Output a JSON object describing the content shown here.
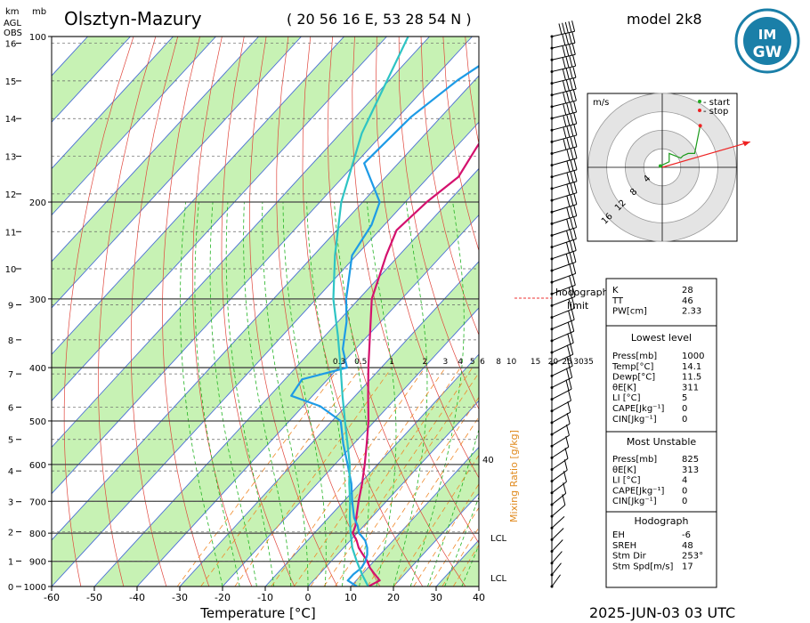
{
  "header": {
    "station": "Olsztyn-Mazury",
    "coords": "( 20 56 16  E, 53 28 54 N )",
    "model": "model 2k8",
    "datetime": "2025-JUN-03    03 UTC",
    "left_units": [
      "km",
      "mb"
    ],
    "left_sub": [
      "AGL",
      "OBS"
    ]
  },
  "logo": {
    "text_top": "IM",
    "text_bottom": "GW",
    "ring_color": "#1a7fa8"
  },
  "chart_data": {
    "type": "line",
    "title": "Olsztyn-Mazury",
    "xlabel": "Temperature [°C]",
    "ylabel": "",
    "xlim": [
      -60,
      40
    ],
    "x_ticks": [
      -60,
      -50,
      -40,
      -30,
      -20,
      -10,
      0,
      10,
      20,
      30,
      40
    ],
    "p_levels": [
      1000,
      900,
      800,
      700,
      600,
      500,
      400,
      300,
      200,
      100
    ],
    "p_labels": [
      "1000",
      "900",
      "800",
      "700",
      "600",
      "500",
      "400",
      "300",
      "200",
      "100"
    ],
    "km_ticks": [
      0,
      1,
      2,
      3,
      4,
      5,
      6,
      7,
      8,
      9,
      10,
      11,
      12,
      13,
      14,
      15,
      16
    ],
    "km_labels": [
      "0",
      "1",
      "2",
      "3",
      "4",
      "5",
      "6",
      "7",
      "8",
      "9",
      "10",
      "11",
      "12",
      "13",
      "14",
      "15",
      "16"
    ],
    "mixing_ratio_labels": [
      "0.3",
      "0.5",
      "1",
      "2",
      "3",
      "4",
      "5",
      "6",
      "8",
      "10",
      "15",
      "20",
      "25",
      "30",
      "35"
    ],
    "mixing_ratio_axis": "Mixing Ratio [g/kg]",
    "mixing_ratio_40": "40",
    "lcl_labels": [
      "LCL",
      "LCL"
    ],
    "series": [
      {
        "name": "temperature",
        "color": "#d4116e",
        "p": [
          1000,
          975,
          950,
          925,
          900,
          875,
          850,
          825,
          800,
          775,
          750,
          700,
          650,
          600,
          550,
          500,
          450,
          400,
          350,
          300,
          250,
          225,
          200,
          180,
          160,
          140,
          120,
          100
        ],
        "t": [
          14.1,
          15.5,
          13,
          10.5,
          8.5,
          6,
          3.5,
          1.5,
          -1,
          -2,
          -3.5,
          -6.5,
          -9.5,
          -13,
          -17,
          -21.5,
          -27,
          -33,
          -39.5,
          -47,
          -53,
          -56,
          -55,
          -53,
          -55,
          -57,
          -60,
          -62
        ]
      },
      {
        "name": "dewpoint",
        "color": "#1e9be6",
        "p": [
          1000,
          975,
          950,
          925,
          900,
          875,
          850,
          825,
          800,
          775,
          750,
          700,
          650,
          600,
          550,
          500,
          470,
          450,
          420,
          400,
          370,
          330,
          300,
          250,
          220,
          200,
          170,
          140,
          120,
          100
        ],
        "t": [
          11.5,
          8,
          8,
          8.5,
          8,
          7,
          5.5,
          3.5,
          0.5,
          -1.5,
          -4,
          -8,
          -12,
          -17,
          -22.5,
          -28,
          -36,
          -45,
          -46,
          -38,
          -43,
          -48,
          -53,
          -61,
          -63,
          -66,
          -78,
          -77,
          -74,
          -68
        ]
      },
      {
        "name": "parcel",
        "color": "#2ec4c4",
        "p": [
          1000,
          950,
          900,
          850,
          800,
          750,
          700,
          650,
          600,
          550,
          500,
          450,
          400,
          350,
          300,
          250,
          200,
          150,
          100
        ],
        "t": [
          14.1,
          10,
          6,
          2,
          -1.5,
          -5,
          -8.5,
          -12.5,
          -16.5,
          -21.5,
          -27,
          -33,
          -39.5,
          -47,
          -56,
          -65,
          -75,
          -85,
          -95
        ]
      }
    ],
    "wind_barbs": {
      "levels": 48,
      "surface_dir_deg": 200,
      "max_kts": 50
    }
  },
  "hodograph": {
    "units": "m/s",
    "legend_start": "- start",
    "legend_stop": "- stop",
    "rings": [
      4,
      8,
      12,
      16
    ],
    "ring_labels": [
      "4",
      "8",
      "12",
      "16"
    ],
    "u": [
      -0.4,
      1.5,
      1.5,
      4.0,
      4.5,
      5.6,
      7.0,
      7.3,
      7.6,
      8.2
    ],
    "v": [
      0.3,
      1.2,
      3.0,
      2.0,
      2.5,
      3.0,
      3.0,
      4.5,
      6.0,
      9.0
    ],
    "storm_u": 19,
    "storm_v": 5.5
  },
  "limit_labels": [
    "hodograph",
    "limit"
  ],
  "indices": {
    "top": [
      {
        "label": "K",
        "value": "28"
      },
      {
        "label": "TT",
        "value": "46"
      },
      {
        "label": "PW[cm]",
        "value": "2.33"
      }
    ],
    "lowest_title": "Lowest level",
    "lowest": [
      {
        "label": "Press[mb]",
        "value": "1000"
      },
      {
        "label": "Temp[°C]",
        "value": "14.1"
      },
      {
        "label": "Dewp[°C]",
        "value": "11.5"
      },
      {
        "label": "θE[K]",
        "value": "311"
      },
      {
        "label": "LI [°C]",
        "value": "5"
      },
      {
        "label": "CAPE[Jkg⁻¹]",
        "value": "0"
      },
      {
        "label": "CIN[Jkg⁻¹]",
        "value": "0"
      }
    ],
    "unstable_title": "Most Unstable",
    "unstable": [
      {
        "label": "Press[mb]",
        "value": "825"
      },
      {
        "label": "θE[K]",
        "value": "313"
      },
      {
        "label": "LI [°C]",
        "value": "4"
      },
      {
        "label": "CAPE[Jkg⁻¹]",
        "value": "0"
      },
      {
        "label": "CIN[Jkg⁻¹]",
        "value": "0"
      }
    ],
    "hodo_title": "Hodograph",
    "hodo": [
      {
        "label": "EH",
        "value": "-6"
      },
      {
        "label": "SREH",
        "value": "48"
      },
      {
        "label": "Stm Dir",
        "value": "253°"
      },
      {
        "label": "Stm Spd[m/s]",
        "value": "17"
      }
    ]
  }
}
